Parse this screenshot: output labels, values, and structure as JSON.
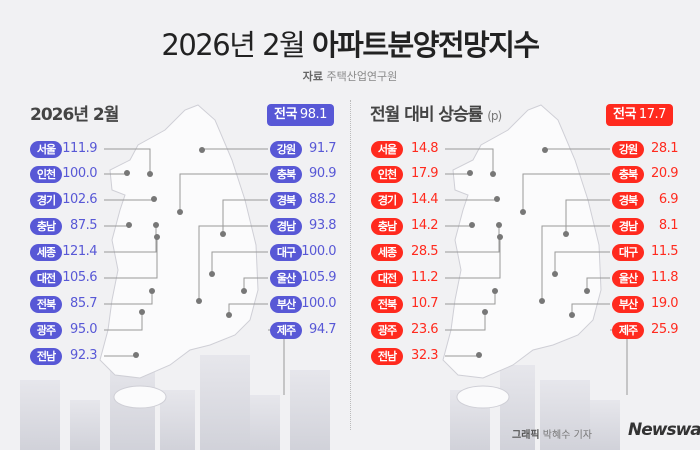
{
  "header": {
    "title_date": "2026년 2월",
    "title_main": "아파트분양전망지수",
    "source_label": "자료",
    "source_name": "주택산업연구원"
  },
  "colors": {
    "left_accent": "#5858d6",
    "right_accent": "#ff2a1e"
  },
  "left_panel": {
    "title": "2026년 2월",
    "national_label": "전국",
    "national_value": "98.1",
    "regions_left": [
      {
        "name": "서울",
        "value": "111.9"
      },
      {
        "name": "인천",
        "value": "100.0"
      },
      {
        "name": "경기",
        "value": "102.6"
      },
      {
        "name": "충남",
        "value": "87.5"
      },
      {
        "name": "세종",
        "value": "121.4"
      },
      {
        "name": "대전",
        "value": "105.6"
      },
      {
        "name": "전북",
        "value": "85.7"
      },
      {
        "name": "광주",
        "value": "95.0"
      },
      {
        "name": "전남",
        "value": "92.3"
      }
    ],
    "regions_right": [
      {
        "name": "강원",
        "value": "91.7"
      },
      {
        "name": "충북",
        "value": "90.9"
      },
      {
        "name": "경북",
        "value": "88.2"
      },
      {
        "name": "경남",
        "value": "93.8"
      },
      {
        "name": "대구",
        "value": "100.0"
      },
      {
        "name": "울산",
        "value": "105.9"
      },
      {
        "name": "부산",
        "value": "100.0"
      },
      {
        "name": "제주",
        "value": "94.7"
      }
    ]
  },
  "right_panel": {
    "title": "전월 대비 상승률",
    "unit": "(p)",
    "national_label": "전국",
    "national_value": "17.7",
    "regions_left": [
      {
        "name": "서울",
        "value": "14.8"
      },
      {
        "name": "인천",
        "value": "17.9"
      },
      {
        "name": "경기",
        "value": "14.4"
      },
      {
        "name": "충남",
        "value": "14.2"
      },
      {
        "name": "세종",
        "value": "28.5"
      },
      {
        "name": "대전",
        "value": "11.2"
      },
      {
        "name": "전북",
        "value": "10.7"
      },
      {
        "name": "광주",
        "value": "23.6"
      },
      {
        "name": "전남",
        "value": "32.3"
      }
    ],
    "regions_right": [
      {
        "name": "강원",
        "value": "28.1"
      },
      {
        "name": "충북",
        "value": "20.9"
      },
      {
        "name": "경북",
        "value": "6.9"
      },
      {
        "name": "경남",
        "value": "8.1"
      },
      {
        "name": "대구",
        "value": "11.5"
      },
      {
        "name": "울산",
        "value": "11.8"
      },
      {
        "name": "부산",
        "value": "19.0"
      },
      {
        "name": "제주",
        "value": "25.9"
      }
    ]
  },
  "footer": {
    "credit_label": "그래픽",
    "credit_name": "박혜수 기자",
    "logo": "Newsway"
  }
}
